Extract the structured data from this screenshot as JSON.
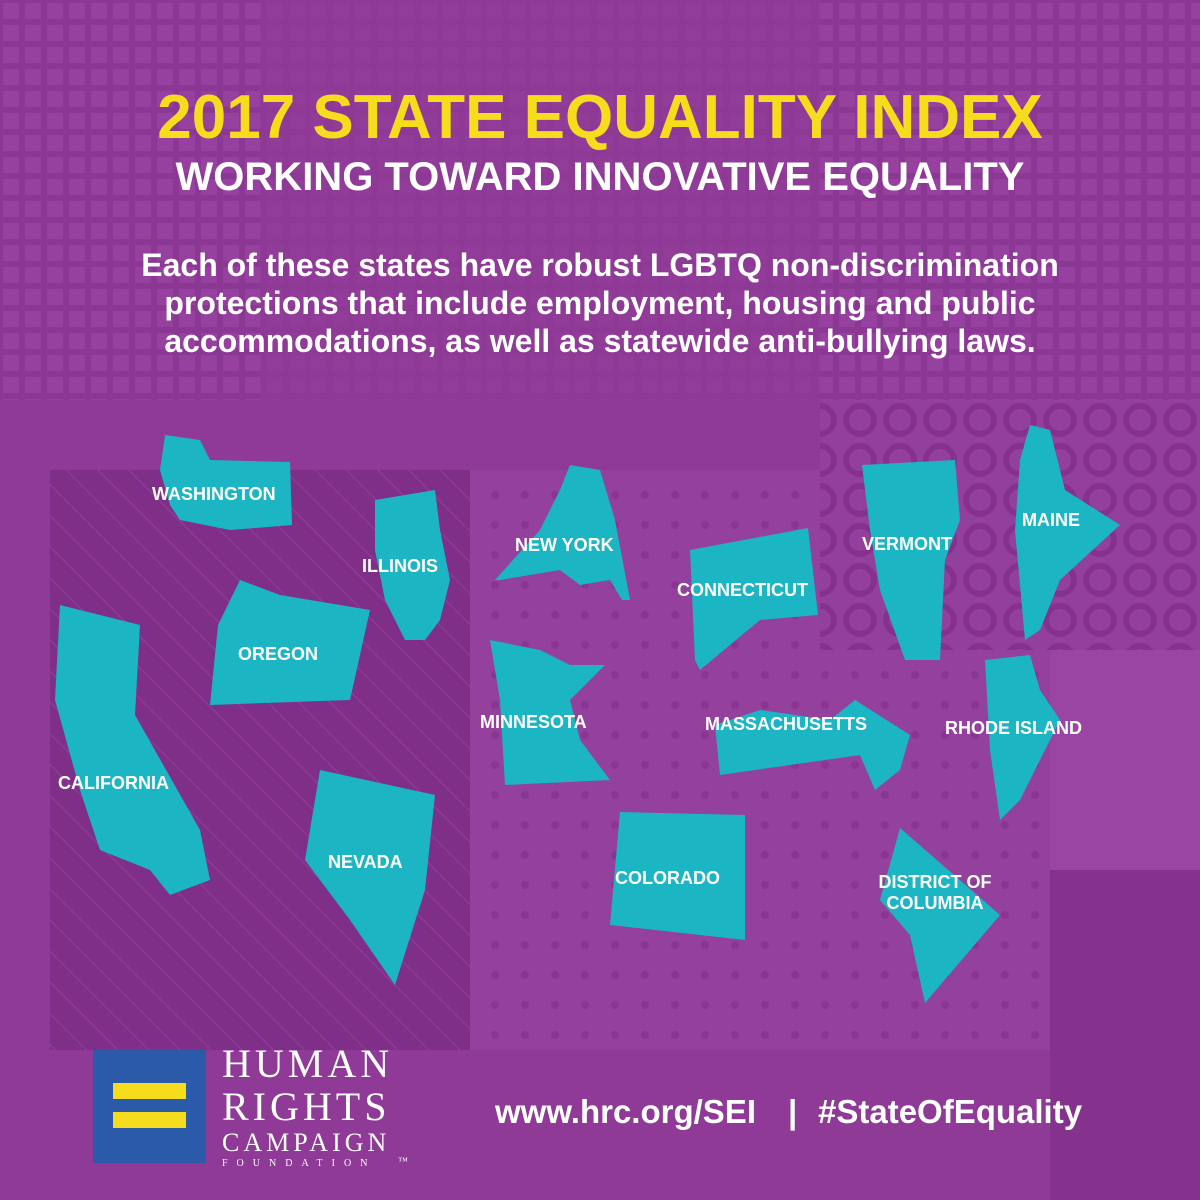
{
  "header": {
    "title": "2017 STATE EQUALITY INDEX",
    "subtitle": "WORKING TOWARD INNOVATIVE EQUALITY"
  },
  "description": [
    "Each of these states have robust LGBTQ non-discrimination",
    "protections that include employment, housing and public",
    "accommodations, as well as statewide anti-bullying laws."
  ],
  "states": [
    "WASHINGTON",
    "ILLINOIS",
    "NEW YORK",
    "CONNECTICUT",
    "VERMONT",
    "MAINE",
    "OREGON",
    "MINNESOTA",
    "MASSACHUSETTS",
    "RHODE ISLAND",
    "CALIFORNIA",
    "NEVADA",
    "COLORADO",
    "DISTRICT OF COLUMBIA"
  ],
  "logo": {
    "lines": [
      "HUMAN",
      "RIGHTS",
      "CAMPAIGN",
      "FOUNDATION"
    ],
    "trademark": "™"
  },
  "footer": {
    "url": "www.hrc.org/SEI",
    "separator": "|",
    "hashtag": "#StateOfEquality"
  }
}
